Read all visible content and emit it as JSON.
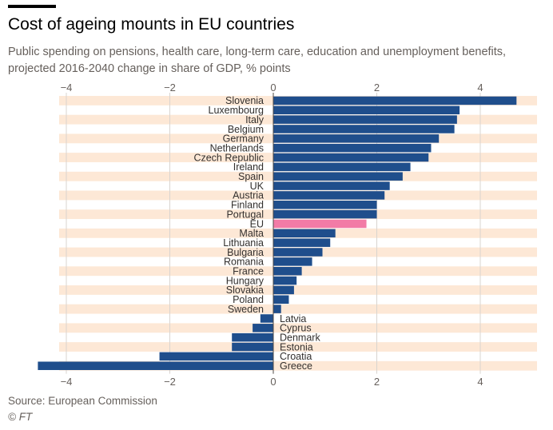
{
  "header": {
    "title": "Cost of ageing mounts in EU countries",
    "subtitle": "Public spending on pensions, health care, long-term care, education and unemployment benefits, projected 2016-2040 change in share of GDP, % points"
  },
  "footer": {
    "source": "Source: European Commission",
    "copyright": "© FT"
  },
  "colors": {
    "bar": "#1f4e8c",
    "highlight": "#f27ba6",
    "band": "#fde8d6",
    "grid": "#d9d4cf",
    "axis_text": "#66605c",
    "label_text": "#33302e"
  },
  "chart_data": {
    "type": "bar",
    "orientation": "horizontal",
    "xlim": [
      -4.6,
      5.1
    ],
    "xticks": [
      -4,
      -2,
      0,
      2,
      4
    ],
    "xtick_labels": [
      "−4",
      "−2",
      "0",
      "2",
      "4"
    ],
    "highlight_category": "EU",
    "categories": [
      "Slovenia",
      "Luxembourg",
      "Italy",
      "Belgium",
      "Germany",
      "Netherlands",
      "Czech Republic",
      "Ireland",
      "Spain",
      "UK",
      "Austria",
      "Finland",
      "Portugal",
      "EU",
      "Malta",
      "Lithuania",
      "Bulgaria",
      "Romania",
      "France",
      "Hungary",
      "Slovakia",
      "Poland",
      "Sweden",
      "Latvia",
      "Cyprus",
      "Denmark",
      "Estonia",
      "Croatia",
      "Greece"
    ],
    "values": [
      4.7,
      3.6,
      3.55,
      3.5,
      3.2,
      3.05,
      3.0,
      2.65,
      2.5,
      2.25,
      2.15,
      2.0,
      2.0,
      1.8,
      1.2,
      1.1,
      0.95,
      0.75,
      0.55,
      0.45,
      0.4,
      0.3,
      0.15,
      -0.25,
      -0.4,
      -0.8,
      -0.8,
      -2.2,
      -4.55
    ]
  }
}
